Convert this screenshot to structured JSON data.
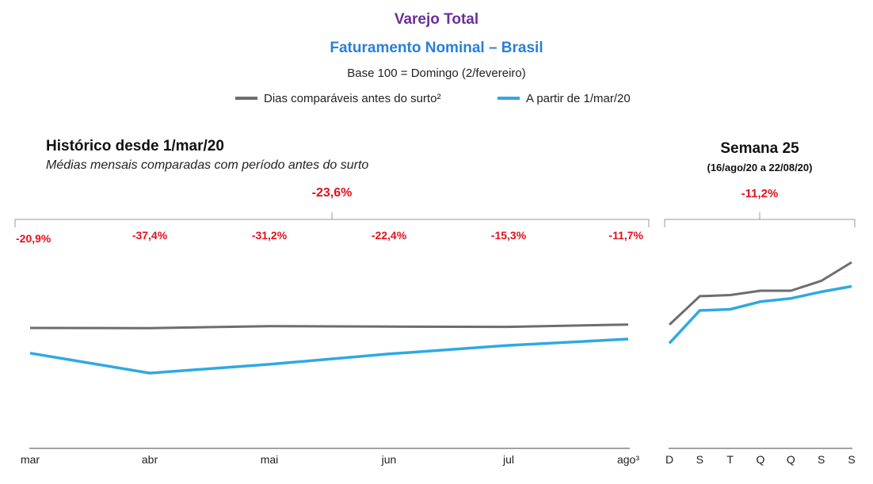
{
  "header": {
    "title": "Varejo Total",
    "subtitle": "Faturamento Nominal – Brasil",
    "base": "Base 100 = Domingo (2/fevereiro)"
  },
  "legend": {
    "items": [
      {
        "label": "Dias comparáveis antes do surto²",
        "color": "#6d6d6d"
      },
      {
        "label": "A partir de 1/mar/20",
        "color": "#2fa9e3"
      }
    ]
  },
  "historic": {
    "title": "Histórico desde 1/mar/20",
    "subtitle": "Médias mensais comparadas com período antes do surto",
    "overall_change": "-23,6%"
  },
  "week": {
    "title": "Semana 25",
    "range": "(16/ago/20 a 22/08/20)",
    "overall_change": "-11,2%"
  },
  "chart_data": [
    {
      "type": "line",
      "title": "Histórico desde 1/mar/20",
      "categories": [
        "mar",
        "abr",
        "mai",
        "jun",
        "jul",
        "ago³"
      ],
      "series": [
        {
          "name": "Dias comparáveis antes do surto²",
          "color": "#6d6d6d",
          "values": [
            100,
            99.8,
            101.5,
            101.1,
            100.9,
            102.8
          ]
        },
        {
          "name": "A partir de 1/mar/20",
          "color": "#2fa9e3",
          "values": [
            79.1,
            62.5,
            69.8,
            78.4,
            85.5,
            90.8
          ]
        }
      ],
      "change_labels": [
        "-20,9%",
        "-37,4%",
        "-31,2%",
        "-22,4%",
        "-15,3%",
        "-11,7%"
      ],
      "ylim": [
        0,
        200
      ],
      "grid": false
    },
    {
      "type": "line",
      "title": "Semana 25",
      "categories": [
        "D",
        "S",
        "T",
        "Q",
        "Q",
        "S",
        "S"
      ],
      "series": [
        {
          "name": "Dias comparáveis antes do surto²",
          "color": "#6d6d6d",
          "values": [
            63,
            89,
            90,
            94,
            94,
            103,
            120
          ]
        },
        {
          "name": "A partir de 1/mar/20",
          "color": "#2fa9e3",
          "values": [
            46,
            76,
            77,
            84,
            87,
            93,
            98
          ]
        }
      ],
      "ylim": [
        -50,
        170
      ],
      "grid": false
    }
  ]
}
